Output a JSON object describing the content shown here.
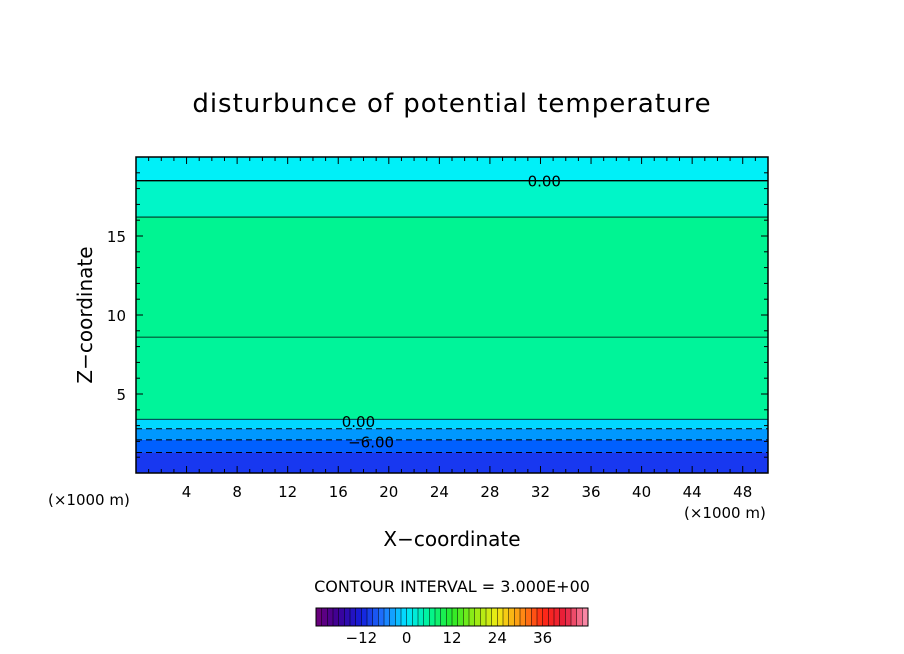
{
  "chart_data": {
    "type": "heatmap",
    "title": "disturbunce of potential temperature",
    "xlabel": "X−coordinate",
    "ylabel": "Z−coordinate",
    "x_unit_left": "(×1000 m)",
    "x_unit_right": "(×1000 m)",
    "xlim": [
      0,
      50
    ],
    "ylim": [
      0,
      20
    ],
    "x_ticks": [
      4,
      8,
      12,
      16,
      20,
      24,
      28,
      32,
      36,
      40,
      44,
      48
    ],
    "y_ticks": [
      5,
      10,
      15
    ],
    "contour_interval_text": "CONTOUR INTERVAL = 3.000E+00",
    "contour_labels": [
      {
        "text": "0.00",
        "x": 32.3,
        "z": 18.5
      },
      {
        "text": "0.00",
        "x": 17.6,
        "z": 3.3
      },
      {
        "text": "−6.00",
        "x": 18.6,
        "z": 2.0
      }
    ],
    "bands": [
      {
        "z0": 18.5,
        "z1": 20.0,
        "color": "#00f0f8"
      },
      {
        "z0": 16.2,
        "z1": 18.5,
        "color": "#00f6c8"
      },
      {
        "z0": 8.6,
        "z1": 16.2,
        "color": "#00f492"
      },
      {
        "z0": 3.4,
        "z1": 8.6,
        "color": "#00f49a"
      },
      {
        "z0": 2.8,
        "z1": 3.4,
        "color": "#00d8ff"
      },
      {
        "z0": 2.1,
        "z1": 2.8,
        "color": "#0098ff"
      },
      {
        "z0": 1.3,
        "z1": 2.1,
        "color": "#0060ff"
      },
      {
        "z0": 0.0,
        "z1": 1.3,
        "color": "#1838f0"
      }
    ],
    "solid_contours_z": [
      18.5,
      16.2,
      8.6,
      3.4
    ],
    "dashed_contours_z": [
      2.8,
      2.1,
      1.3
    ],
    "colorbar": {
      "range": [
        -24,
        48
      ],
      "tick_labels": [
        "−12",
        "0",
        "12",
        "24",
        "36"
      ],
      "tick_values": [
        -12,
        0,
        12,
        24,
        36
      ]
    }
  }
}
